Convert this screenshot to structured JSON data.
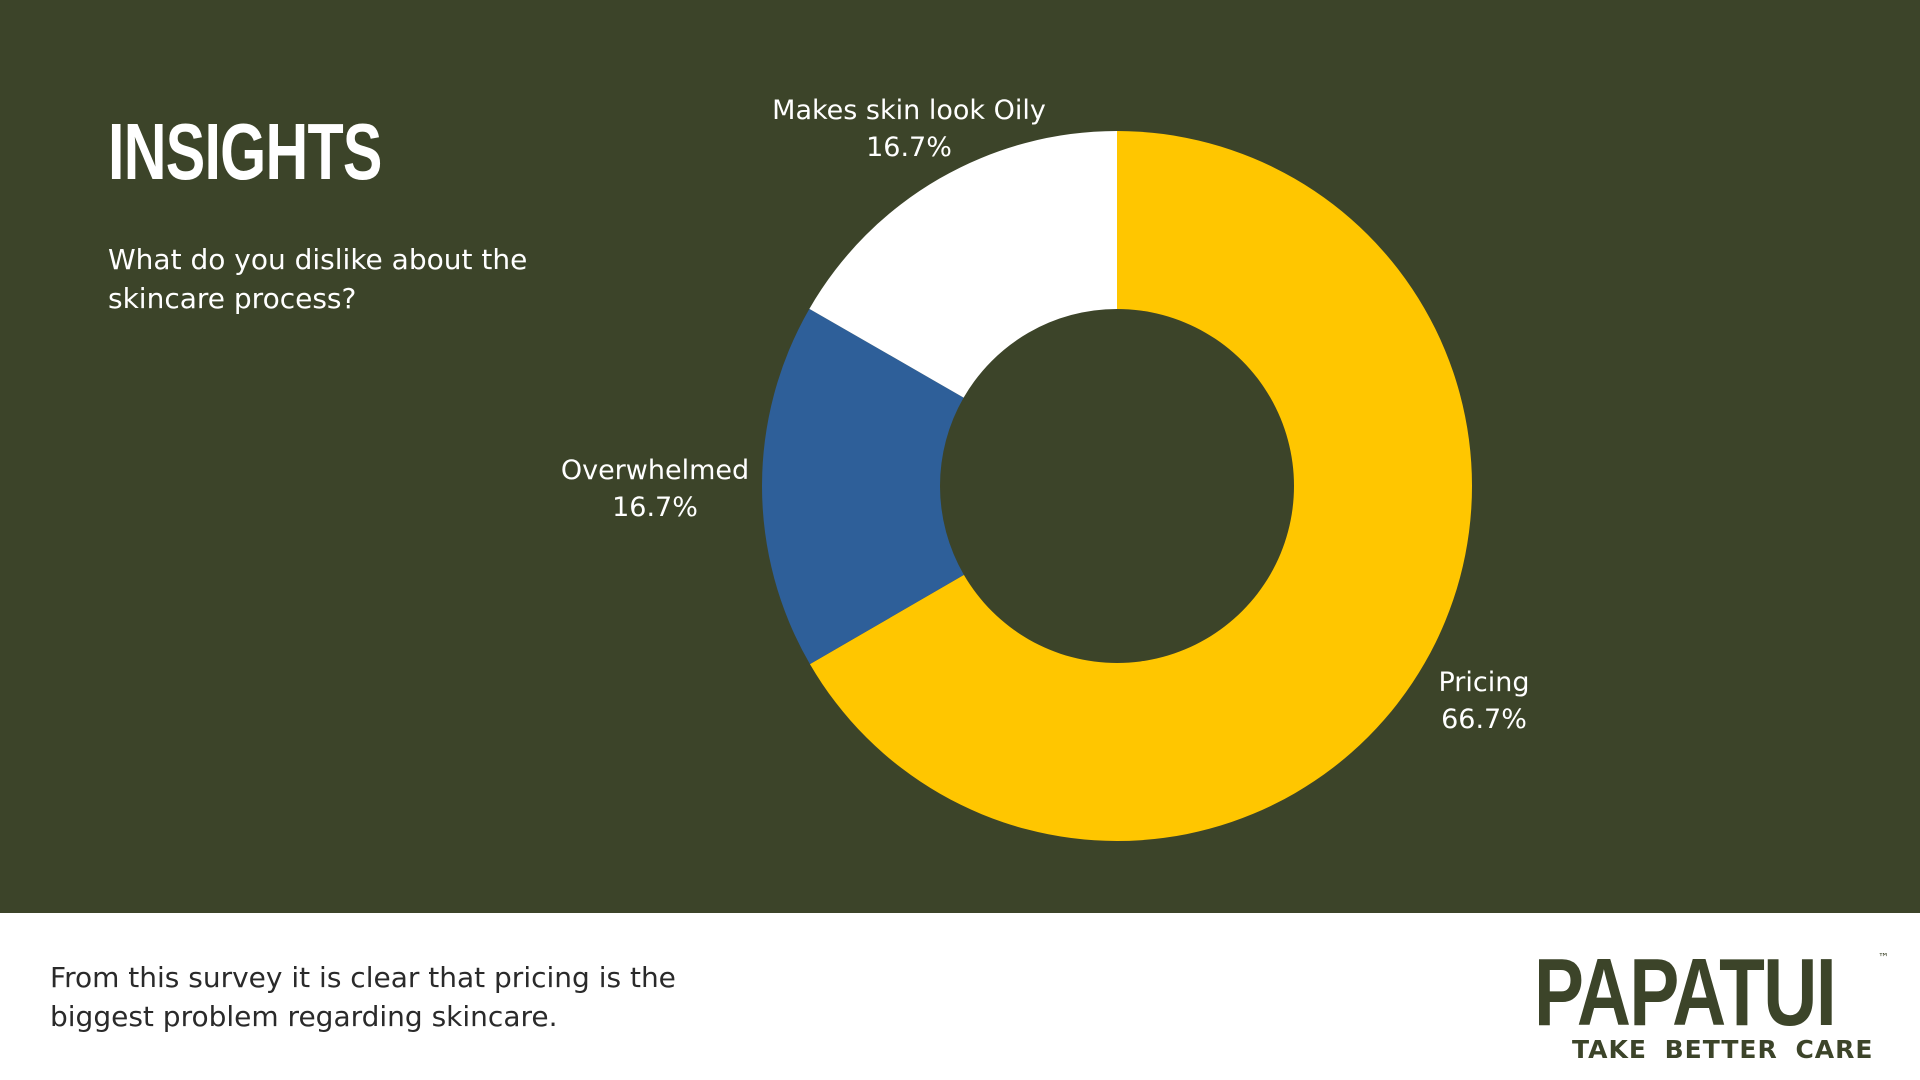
{
  "slide": {
    "title": "INSIGHTS",
    "question": "What do you dislike about the skincare process?",
    "conclusion": "From this survey it is clear that pricing is the biggest problem regarding skincare."
  },
  "brand": {
    "name": "PAPATUI",
    "tm": "™",
    "tagline": "TAKE BETTER CARE"
  },
  "colors": {
    "background": "#3c4429",
    "footer": "#ffffff",
    "pricing": "#ffc600",
    "overwhelmed": "#2e5f99",
    "oily": "#ffffff"
  },
  "chart_data": {
    "type": "pie",
    "variant": "donut",
    "title": "",
    "slices": [
      {
        "label": "Pricing",
        "value": 66.7,
        "value_label": "66.7%",
        "color": "#ffc600"
      },
      {
        "label": "Overwhelmed",
        "value": 16.7,
        "value_label": "16.7%",
        "color": "#2e5f99"
      },
      {
        "label": "Makes skin look Oily",
        "value": 16.7,
        "value_label": "16.7%",
        "color": "#ffffff"
      }
    ],
    "legend": "none"
  }
}
